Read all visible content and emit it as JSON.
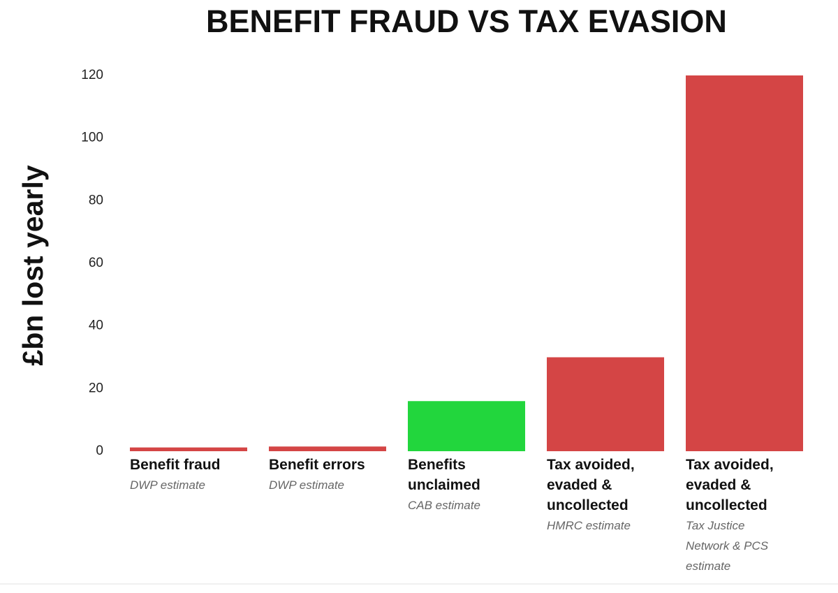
{
  "chart_data": {
    "type": "bar",
    "title": "BENEFIT FRAUD VS TAX EVASION",
    "ylabel": "£bn lost yearly",
    "categories": [
      "Benefit fraud",
      "Benefit errors",
      "Benefits unclaimed",
      "Tax avoided, evaded & uncollected",
      "Tax avoided, evaded & uncollected"
    ],
    "sources": [
      "DWP estimate",
      "DWP estimate",
      "CAB estimate",
      "HMRC estimate",
      "Tax Justice Network & PCS estimate"
    ],
    "values": [
      1.2,
      1.5,
      16,
      30,
      120
    ],
    "colors": [
      "#d44545",
      "#d44545",
      "#22d63d",
      "#d44545",
      "#d44545"
    ],
    "ylim": [
      0,
      120
    ],
    "yticks": [
      0,
      20,
      40,
      60,
      80,
      100,
      120
    ],
    "grid": false
  }
}
